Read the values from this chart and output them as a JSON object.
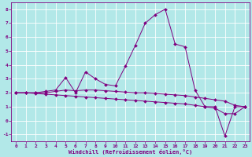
{
  "xlabel": "Windchill (Refroidissement éolien,°C)",
  "background_color": "#b2e8e8",
  "line_color": "#800080",
  "grid_color": "#ffffff",
  "x_values": [
    0,
    1,
    2,
    3,
    4,
    5,
    6,
    7,
    8,
    9,
    10,
    11,
    12,
    13,
    14,
    15,
    16,
    17,
    18,
    19,
    20,
    21,
    22,
    23
  ],
  "line1_y": [
    2.0,
    2.0,
    2.0,
    2.1,
    2.2,
    3.1,
    2.0,
    3.5,
    3.0,
    2.6,
    2.5,
    3.9,
    5.4,
    7.0,
    7.6,
    8.0,
    5.5,
    5.3,
    2.2,
    1.0,
    1.0,
    -1.1,
    1.0,
    1.0
  ],
  "line2_y": [
    2.0,
    2.0,
    2.0,
    2.0,
    2.1,
    2.2,
    2.15,
    2.2,
    2.2,
    2.15,
    2.1,
    2.05,
    2.0,
    2.0,
    1.95,
    1.9,
    1.85,
    1.8,
    1.7,
    1.6,
    1.5,
    1.4,
    1.1,
    1.0
  ],
  "line3_y": [
    2.0,
    2.0,
    1.95,
    1.9,
    1.85,
    1.8,
    1.75,
    1.7,
    1.65,
    1.6,
    1.55,
    1.5,
    1.45,
    1.4,
    1.35,
    1.3,
    1.25,
    1.2,
    1.1,
    1.0,
    0.9,
    0.5,
    0.5,
    1.0
  ],
  "ylim": [
    -1.5,
    8.5
  ],
  "yticks": [
    -1,
    0,
    1,
    2,
    3,
    4,
    5,
    6,
    7,
    8
  ],
  "xticks": [
    0,
    1,
    2,
    3,
    4,
    5,
    6,
    7,
    8,
    9,
    10,
    11,
    12,
    13,
    14,
    15,
    16,
    17,
    18,
    19,
    20,
    21,
    22,
    23
  ],
  "tick_fontsize": 4.5,
  "xlabel_fontsize": 5.0,
  "marker_size": 2.0,
  "linewidth": 0.7
}
